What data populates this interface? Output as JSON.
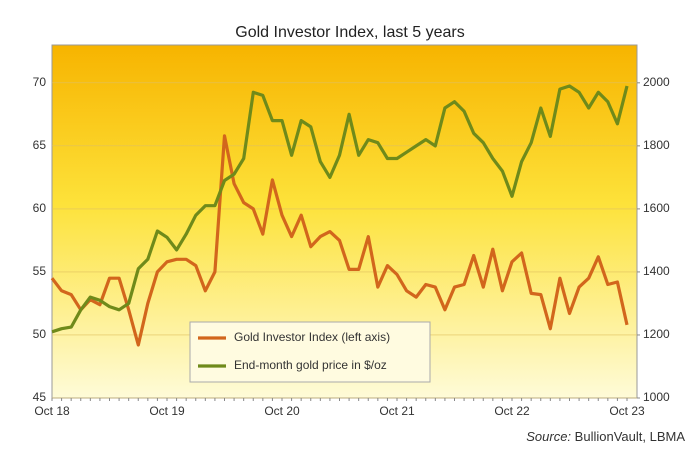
{
  "chart_data": {
    "type": "line",
    "title": "Gold Investor Index, last 5 years",
    "source_label": "Source:",
    "source": "BullionVault, LBMA",
    "categories": [
      "Oct 18",
      null,
      null,
      null,
      null,
      null,
      null,
      null,
      null,
      null,
      null,
      null,
      "Oct 19",
      null,
      null,
      null,
      null,
      null,
      null,
      null,
      null,
      null,
      null,
      null,
      "Oct 20",
      null,
      null,
      null,
      null,
      null,
      null,
      null,
      null,
      null,
      null,
      null,
      "Oct 21",
      null,
      null,
      null,
      null,
      null,
      null,
      null,
      null,
      null,
      null,
      null,
      "Oct 22",
      null,
      null,
      null,
      null,
      null,
      null,
      null,
      null,
      null,
      null,
      null,
      "Oct 23"
    ],
    "series": [
      {
        "name": "Gold Investor Index (left axis)",
        "color": "#d2661c",
        "axis": "y",
        "values": [
          54.5,
          53.5,
          53.2,
          52,
          52.8,
          52.4,
          54.5,
          54.5,
          52,
          49.2,
          52.5,
          55,
          55.8,
          56,
          56,
          55.5,
          53.5,
          55,
          65.8,
          62,
          60.5,
          60,
          58,
          62.3,
          59.5,
          57.8,
          59.5,
          57,
          57.8,
          58.2,
          57.5,
          55.2,
          55.2,
          57.8,
          53.8,
          55.5,
          54.8,
          53.5,
          53,
          54,
          53.8,
          52,
          53.8,
          54,
          56.3,
          53.8,
          56.8,
          53.5,
          55.8,
          56.5,
          53.3,
          53.2,
          50.5,
          54.5,
          51.7,
          53.8,
          54.5,
          56.2,
          54,
          54.2,
          50.8
        ]
      },
      {
        "name": "End-month gold price in $/oz",
        "color": "#6f8a1a",
        "axis": "y2",
        "values": [
          1210,
          1220,
          1225,
          1280,
          1320,
          1310,
          1290,
          1280,
          1300,
          1410,
          1440,
          1530,
          1510,
          1470,
          1520,
          1580,
          1610,
          1610,
          1690,
          1710,
          1760,
          1970,
          1960,
          1880,
          1880,
          1770,
          1880,
          1860,
          1750,
          1700,
          1770,
          1900,
          1770,
          1820,
          1810,
          1760,
          1760,
          1780,
          1800,
          1820,
          1800,
          1920,
          1940,
          1910,
          1840,
          1810,
          1760,
          1720,
          1640,
          1750,
          1810,
          1920,
          1830,
          1980,
          1990,
          1970,
          1920,
          1970,
          1940,
          1870,
          1990
        ]
      }
    ],
    "ylim": [
      45,
      73
    ],
    "yticks": [
      45,
      50,
      55,
      60,
      65,
      70
    ],
    "y2lim": [
      1000,
      2120
    ],
    "y2ticks": [
      1000,
      1200,
      1400,
      1600,
      1800,
      2000
    ],
    "grid": true
  }
}
